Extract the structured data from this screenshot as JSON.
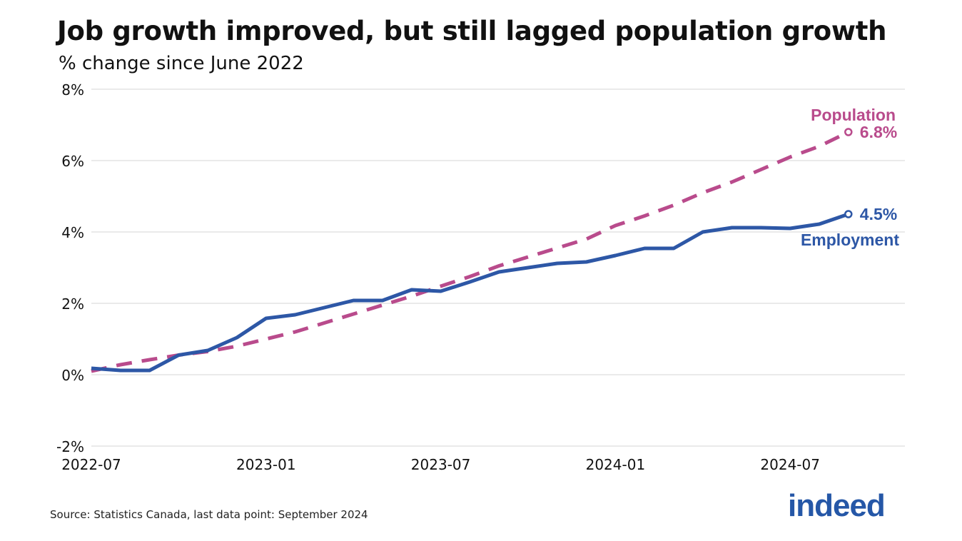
{
  "chart_data": {
    "type": "line",
    "title": "Job growth improved, but still lagged population growth",
    "subtitle": "% change since June 2022",
    "xlabel": "",
    "ylabel": "",
    "x": [
      "2022-07",
      "2022-08",
      "2022-09",
      "2022-10",
      "2022-11",
      "2022-12",
      "2023-01",
      "2023-02",
      "2023-03",
      "2023-04",
      "2023-05",
      "2023-06",
      "2023-07",
      "2023-08",
      "2023-09",
      "2023-10",
      "2023-11",
      "2023-12",
      "2024-01",
      "2024-02",
      "2024-03",
      "2024-04",
      "2024-05",
      "2024-06",
      "2024-07",
      "2024-08",
      "2024-09"
    ],
    "x_tick_labels": [
      "2022-07",
      "2023-01",
      "2023-07",
      "2024-01",
      "2024-07"
    ],
    "ylim": [
      -2,
      8
    ],
    "y_tick_labels": [
      "-2%",
      "0%",
      "2%",
      "4%",
      "6%",
      "8%"
    ],
    "y_ticks": [
      -2,
      0,
      2,
      4,
      6,
      8
    ],
    "grid": true,
    "series": [
      {
        "name": "Population",
        "color": "#b94b8c",
        "style": "dashed",
        "end_label": "6.8%",
        "values": [
          0.1,
          0.28,
          0.42,
          0.55,
          0.65,
          0.8,
          1.0,
          1.2,
          1.45,
          1.7,
          1.95,
          2.2,
          2.48,
          2.75,
          3.05,
          3.3,
          3.55,
          3.8,
          4.18,
          4.45,
          4.75,
          5.1,
          5.4,
          5.75,
          6.1,
          6.4,
          6.8
        ]
      },
      {
        "name": "Employment",
        "color": "#2d57a6",
        "style": "solid",
        "end_label": "4.5%",
        "values": [
          0.18,
          0.12,
          0.12,
          0.55,
          0.68,
          1.04,
          1.58,
          1.68,
          1.88,
          2.08,
          2.08,
          2.38,
          2.34,
          2.6,
          2.88,
          3.0,
          3.12,
          3.16,
          3.34,
          3.54,
          3.54,
          4.0,
          4.12,
          4.12,
          4.1,
          4.22,
          4.5
        ]
      }
    ]
  },
  "source": "Source: Statistics Canada, last data point: September 2024",
  "logo": "indeed"
}
